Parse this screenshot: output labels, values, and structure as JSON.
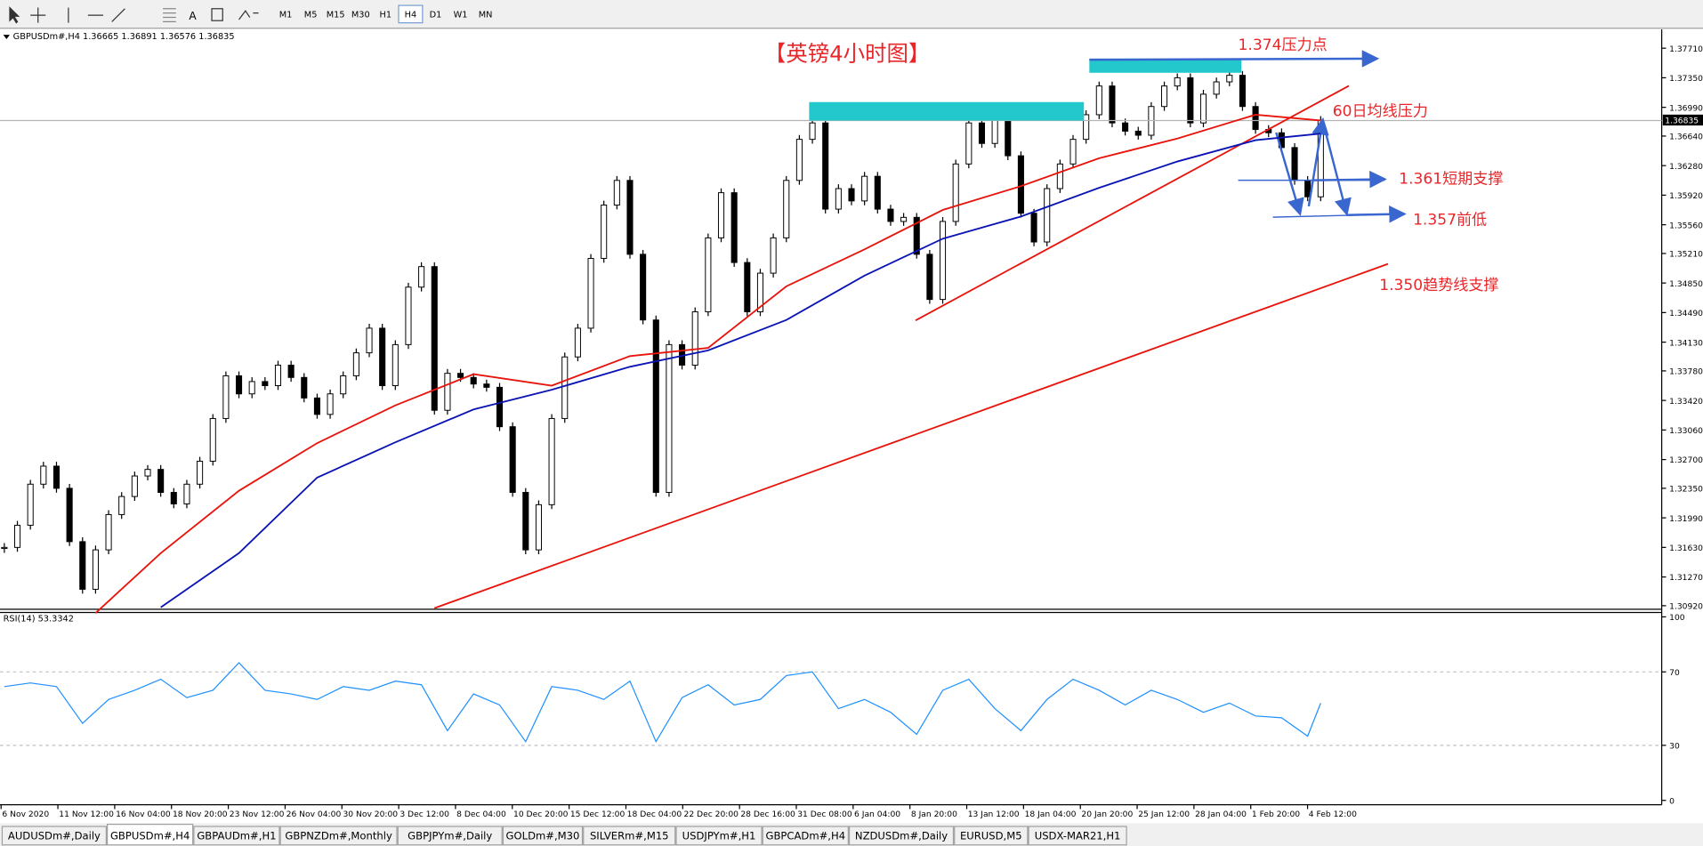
{
  "toolbar": {
    "timeframes": [
      "M1",
      "M5",
      "M15",
      "M30",
      "H1",
      "H4",
      "D1",
      "W1",
      "MN"
    ],
    "active": 5
  },
  "tabs": {
    "items": [
      "AUDUSDm#,Daily",
      "GBPUSDm#,H4",
      "GBPAUDm#,H1",
      "GBPNZDm#,Monthly",
      "GBPJPYm#,Daily",
      "GOLDm#,M30",
      "SILVERm#,M15",
      "USDJPYm#,H1",
      "GBPCADm#,H4",
      "NZDUSDm#,Daily",
      "EURUSD,M5",
      "USDX-MAR21,H1"
    ],
    "active": 1
  },
  "chart_data": [
    {
      "type": "candlestick",
      "header": "GBPUSDm#,H4  1.36665 1.36891 1.36576 1.36835",
      "title": "【英镑4小时图】",
      "last_price_label": "1.36835",
      "last_price": 1.36835,
      "annotations": [
        "1.374压力点",
        "60日均线压力",
        "1.361短期支撑",
        "1.357前低",
        "1.350趋势线支撑"
      ],
      "x_labels": [
        "6 Nov 2020",
        "11 Nov 12:00",
        "16 Nov 04:00",
        "18 Nov 20:00",
        "23 Nov 12:00",
        "26 Nov 04:00",
        "30 Nov 20:00",
        "3 Dec 12:00",
        "8 Dec 04:00",
        "10 Dec 20:00",
        "15 Dec 12:00",
        "18 Dec 04:00",
        "22 Dec 20:00",
        "28 Dec 16:00",
        "31 Dec 08:00",
        "6 Jan 04:00",
        "8 Jan 20:00",
        "13 Jan 12:00",
        "18 Jan 04:00",
        "20 Jan 20:00",
        "25 Jan 12:00",
        "28 Jan 04:00",
        "1 Feb 20:00",
        "4 Feb 12:00"
      ],
      "values": [
        1.3163,
        1.319,
        1.324,
        1.3262,
        1.3235,
        1.317,
        1.3112,
        1.316,
        1.3203,
        1.3225,
        1.325,
        1.3258,
        1.323,
        1.3216,
        1.324,
        1.3268,
        1.332,
        1.3372,
        1.335,
        1.3365,
        1.336,
        1.3385,
        1.337,
        1.3345,
        1.3325,
        1.335,
        1.3372,
        1.34,
        1.343,
        1.336,
        1.341,
        1.348,
        1.3505,
        1.333,
        1.3375,
        1.337,
        1.3362,
        1.3358,
        1.331,
        1.323,
        1.316,
        1.3215,
        1.332,
        1.3395,
        1.343,
        1.3515,
        1.358,
        1.361,
        1.352,
        1.344,
        1.323,
        1.341,
        1.3385,
        1.345,
        1.354,
        1.3595,
        1.351,
        1.345,
        1.3497,
        1.354,
        1.361,
        1.366,
        1.368,
        1.3575,
        1.36,
        1.3585,
        1.3615,
        1.3575,
        1.356,
        1.3565,
        1.352,
        1.3465,
        1.356,
        1.363,
        1.368,
        1.3655,
        1.3685,
        1.364,
        1.357,
        1.3535,
        1.36,
        1.363,
        1.366,
        1.369,
        1.3725,
        1.368,
        1.367,
        1.3665,
        1.37,
        1.3725,
        1.3735,
        1.368,
        1.3715,
        1.373,
        1.3738,
        1.37,
        1.3672,
        1.3668,
        1.365,
        1.361,
        1.359,
        1.3683
      ],
      "series": [
        {
          "color": "#e8140c",
          "x": [
            7,
            12,
            18,
            24,
            30,
            36,
            42,
            48,
            54,
            60,
            66,
            72,
            78,
            84,
            90,
            96,
            101
          ],
          "values": [
            1.3083,
            1.3156,
            1.3232,
            1.329,
            1.3336,
            1.3374,
            1.336,
            1.3396,
            1.3406,
            1.3481,
            1.3526,
            1.3574,
            1.3603,
            1.3637,
            1.3661,
            1.369,
            1.3683
          ]
        },
        {
          "color": "#0a14b4",
          "x": [
            12,
            18,
            24,
            30,
            36,
            42,
            48,
            54,
            60,
            66,
            72,
            78,
            84,
            90,
            96,
            101
          ],
          "values": [
            1.309,
            1.3156,
            1.3248,
            1.3291,
            1.3331,
            1.3355,
            1.3383,
            1.3403,
            1.344,
            1.3494,
            1.3539,
            1.3566,
            1.3601,
            1.3633,
            1.3659,
            1.3667
          ]
        }
      ],
      "ylim": [
        1.3089,
        1.3794
      ],
      "yticks": [
        {
          "value": 1.3771,
          "label": "1.37710"
        },
        {
          "value": 1.3735,
          "label": "1.37350"
        },
        {
          "value": 1.3699,
          "label": "1.36990"
        },
        {
          "value": 1.3664,
          "label": "1.36640"
        },
        {
          "value": 1.3628,
          "label": "1.36280"
        },
        {
          "value": 1.3592,
          "label": "1.35920"
        },
        {
          "value": 1.3556,
          "label": "1.35560"
        },
        {
          "value": 1.3521,
          "label": "1.35210"
        },
        {
          "value": 1.3485,
          "label": "1.34850"
        },
        {
          "value": 1.3449,
          "label": "1.34490"
        },
        {
          "value": 1.3413,
          "label": "1.34130"
        },
        {
          "value": 1.3378,
          "label": "1.33780"
        },
        {
          "value": 1.3342,
          "label": "1.33420"
        },
        {
          "value": 1.3306,
          "label": "1.33060"
        },
        {
          "value": 1.327,
          "label": "1.32700"
        },
        {
          "value": 1.3235,
          "label": "1.32350"
        },
        {
          "value": 1.3199,
          "label": "1.31990"
        },
        {
          "value": 1.3163,
          "label": "1.31630"
        },
        {
          "value": 1.3127,
          "label": "1.31270"
        },
        {
          "value": 1.3092,
          "label": "1.30920"
        }
      ]
    },
    {
      "type": "line",
      "title": "RSI(14) 53.3342",
      "color": "#1e90ff",
      "ylim": [
        0,
        100
      ],
      "yticks": [
        100,
        70,
        30,
        0
      ],
      "x": [
        0,
        2,
        4,
        6,
        8,
        10,
        12,
        14,
        16,
        18,
        20,
        22,
        24,
        26,
        28,
        30,
        32,
        34,
        36,
        38,
        40,
        42,
        44,
        46,
        48,
        50,
        52,
        54,
        56,
        58,
        60,
        62,
        64,
        66,
        68,
        70,
        72,
        74,
        76,
        78,
        80,
        82,
        84,
        86,
        88,
        90,
        92,
        94,
        96,
        98,
        100,
        101
      ],
      "values": [
        62,
        64,
        62,
        42,
        55,
        60,
        66,
        56,
        60,
        75,
        60,
        58,
        55,
        62,
        60,
        65,
        63,
        38,
        58,
        52,
        32,
        62,
        60,
        55,
        65,
        32,
        56,
        63,
        52,
        55,
        68,
        70,
        50,
        55,
        48,
        36,
        60,
        66,
        50,
        38,
        55,
        66,
        60,
        52,
        60,
        55,
        48,
        53,
        46,
        45,
        35,
        53
      ]
    }
  ]
}
